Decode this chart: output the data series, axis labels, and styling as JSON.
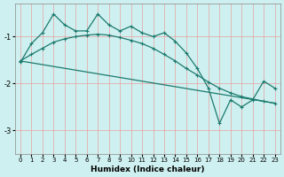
{
  "xlabel": "Humidex (Indice chaleur)",
  "ylabel": "",
  "bg_color": "#cff0f0",
  "line_color": "#1a7a6e",
  "grid_color_major": "#e8a0a0",
  "xlim": [
    -0.5,
    23.5
  ],
  "ylim": [
    -3.5,
    -0.3
  ],
  "yticks": [
    -3,
    -2,
    -1
  ],
  "xticks": [
    0,
    1,
    2,
    3,
    4,
    5,
    6,
    7,
    8,
    9,
    10,
    11,
    12,
    13,
    14,
    15,
    16,
    17,
    18,
    19,
    20,
    21,
    22,
    23
  ],
  "line1_x": [
    0,
    1,
    2,
    3,
    4,
    5,
    6,
    7,
    8,
    9,
    10,
    11,
    12,
    13,
    14,
    15,
    16,
    17,
    18,
    19,
    20,
    21,
    22,
    23
  ],
  "line1_y": [
    -1.55,
    -1.15,
    -0.92,
    -0.52,
    -0.75,
    -0.88,
    -0.88,
    -0.52,
    -0.75,
    -0.88,
    -0.78,
    -0.92,
    -1.0,
    -0.92,
    -1.1,
    -1.35,
    -1.68,
    -2.1,
    -2.85,
    -2.35,
    -2.5,
    -2.35,
    -1.95,
    -2.1
  ],
  "line2_x": [
    0,
    1,
    2,
    3,
    4,
    5,
    6,
    7,
    8,
    9,
    10,
    11,
    12,
    13,
    14,
    15,
    16,
    17,
    18,
    19,
    20,
    21,
    22,
    23
  ],
  "line2_y": [
    -1.52,
    -1.38,
    -1.25,
    -1.12,
    -1.05,
    -1.0,
    -0.97,
    -0.95,
    -0.97,
    -1.02,
    -1.08,
    -1.15,
    -1.25,
    -1.38,
    -1.52,
    -1.68,
    -1.82,
    -1.97,
    -2.1,
    -2.2,
    -2.28,
    -2.33,
    -2.38,
    -2.42
  ],
  "line3_x": [
    0,
    23
  ],
  "line3_y": [
    -1.52,
    -2.42
  ],
  "marker": "+"
}
